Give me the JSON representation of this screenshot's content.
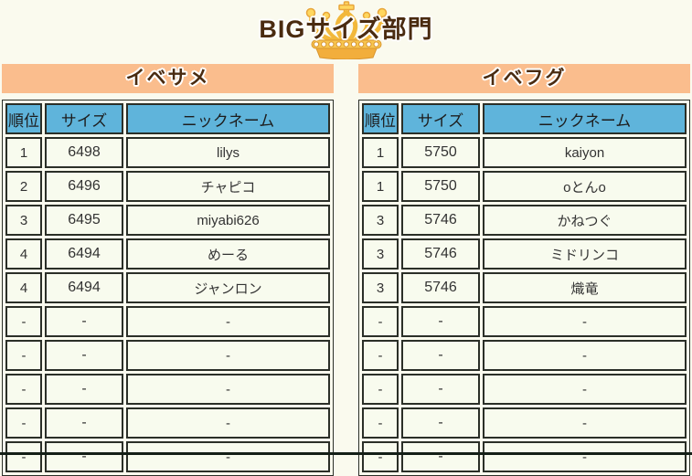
{
  "title": "BIGサイズ部門",
  "crown_icon": "gold-crown",
  "columns": [
    "順位",
    "サイズ",
    "ニックネーム"
  ],
  "sections": [
    {
      "name": "イベサメ",
      "rows": [
        [
          "1",
          "6498",
          "lilys"
        ],
        [
          "2",
          "6496",
          "チャピコ"
        ],
        [
          "3",
          "6495",
          "miyabi626"
        ],
        [
          "4",
          "6494",
          "めーる"
        ],
        [
          "4",
          "6494",
          "ジャンロン"
        ],
        [
          "-",
          "-",
          "-"
        ],
        [
          "-",
          "-",
          "-"
        ],
        [
          "-",
          "-",
          "-"
        ],
        [
          "-",
          "-",
          "-"
        ],
        [
          "-",
          "-",
          "-"
        ]
      ]
    },
    {
      "name": "イベフグ",
      "rows": [
        [
          "1",
          "5750",
          "kaiyon"
        ],
        [
          "1",
          "5750",
          "oとんo"
        ],
        [
          "3",
          "5746",
          "かねつぐ"
        ],
        [
          "3",
          "5746",
          "ミドリンコ"
        ],
        [
          "3",
          "5746",
          "熾竜"
        ],
        [
          "-",
          "-",
          "-"
        ],
        [
          "-",
          "-",
          "-"
        ],
        [
          "-",
          "-",
          "-"
        ],
        [
          "-",
          "-",
          "-"
        ],
        [
          "-",
          "-",
          "-"
        ]
      ]
    }
  ],
  "colors": {
    "page_bg": "#FAFAEE",
    "section_header_bg": "#FABD8D",
    "table_header_bg": "#5FB4DB",
    "cell_bg": "#F8FBEE",
    "border": "#2B2F28",
    "title_text": "#4A2B10",
    "crown_gold": "#FFD75E",
    "crown_outline": "#E8A63C",
    "footer_strip": "#141F17"
  }
}
